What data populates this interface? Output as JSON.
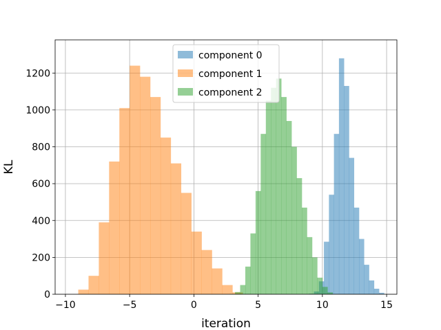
{
  "chart_data": {
    "type": "bar",
    "title": "",
    "xlabel": "iteration",
    "ylabel": "KL",
    "xlim": [
      -10.8,
      15.8
    ],
    "ylim": [
      0,
      1380
    ],
    "xticks": [
      -10,
      -5,
      0,
      5,
      10,
      15
    ],
    "xtick_labels": [
      "−10",
      "−5",
      "0",
      "5",
      "10",
      "15"
    ],
    "yticks": [
      0,
      200,
      400,
      600,
      800,
      1000,
      1200
    ],
    "ytick_labels": [
      "0",
      "200",
      "400",
      "600",
      "800",
      "1000",
      "1200"
    ],
    "grid": true,
    "legend_position": "top-center",
    "series": [
      {
        "name": "component 0",
        "color": "#1f77b4",
        "alpha": 0.5,
        "bin_edges": [
          8.95,
          9.34,
          9.73,
          10.12,
          10.51,
          10.9,
          11.29,
          11.68,
          12.07,
          12.46,
          12.85,
          13.24,
          13.63,
          14.02,
          14.41,
          14.8
        ],
        "values": [
          3,
          15,
          70,
          285,
          540,
          870,
          1280,
          1130,
          740,
          470,
          300,
          160,
          75,
          30,
          8
        ]
      },
      {
        "name": "component 1",
        "color": "#ff7f0e",
        "alpha": 0.5,
        "bin_edges": [
          -9.0,
          -8.2,
          -7.4,
          -6.6,
          -5.8,
          -5.0,
          -4.2,
          -3.4,
          -2.6,
          -1.8,
          -1.0,
          -0.2,
          0.6,
          1.4,
          2.2,
          3.0,
          3.8
        ],
        "values": [
          25,
          100,
          390,
          720,
          1010,
          1240,
          1180,
          1070,
          850,
          710,
          550,
          340,
          240,
          140,
          50,
          10
        ]
      },
      {
        "name": "component 2",
        "color": "#2ca02c",
        "alpha": 0.5,
        "bin_edges": [
          2.8,
          3.2,
          3.6,
          4.0,
          4.4,
          4.8,
          5.2,
          5.6,
          6.0,
          6.4,
          6.8,
          7.2,
          7.6,
          8.0,
          8.4,
          8.8,
          9.2,
          9.6,
          10.0,
          10.4,
          10.8
        ],
        "values": [
          2,
          12,
          50,
          150,
          330,
          560,
          870,
          1050,
          1120,
          1170,
          1070,
          940,
          800,
          630,
          470,
          310,
          200,
          90,
          40,
          10
        ]
      }
    ]
  }
}
